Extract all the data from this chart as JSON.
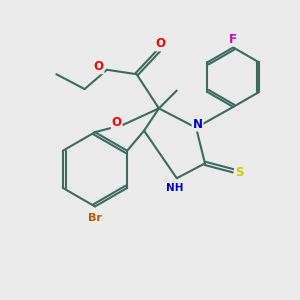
{
  "bg_color": "#ebebeb",
  "bond_color": "#3d6b5e",
  "bond_width": 1.5,
  "atom_colors": {
    "O": "#ff0000",
    "N": "#0000cc",
    "S": "#cccc00",
    "Br": "#b35a00",
    "F": "#cc00cc",
    "C": "#3d6b5e"
  },
  "figsize": [
    3.0,
    3.0
  ],
  "dpi": 100
}
